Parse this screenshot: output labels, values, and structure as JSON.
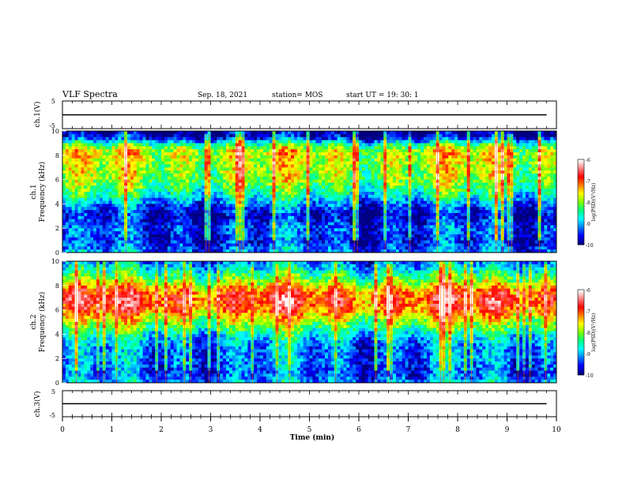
{
  "header": {
    "title": "VLF Spectra",
    "date": "Sep. 18, 2021",
    "station": "station= MOS",
    "start": "start  UT =   19: 30: 1"
  },
  "colors": {
    "colormap": [
      "#000080",
      "#0000ff",
      "#0080ff",
      "#00ffff",
      "#00ff80",
      "#80ff00",
      "#ffff00",
      "#ff8000",
      "#ff0000",
      "#ff8080",
      "#ffffff"
    ],
    "line": "#000000",
    "background": "#ffffff"
  },
  "chart_data": [
    {
      "id": "ch1v",
      "type": "line",
      "ylabel": "ch.1(V)",
      "ylim": [
        -5,
        5
      ],
      "ytick_labels": [
        "5",
        "-5"
      ],
      "series": [
        {
          "x": [
            0,
            9.8
          ],
          "values": [
            0,
            0
          ]
        }
      ]
    },
    {
      "id": "ch1spec",
      "type": "heatmap",
      "ylabel_lines": [
        "ch.1",
        "Frequency (kHz)"
      ],
      "ylim": [
        0,
        10
      ],
      "ytick_labels": [
        "0",
        "2",
        "4",
        "6",
        "8",
        "10"
      ],
      "colorbar": {
        "label": "log(PSD)(V²/Hz)",
        "tick_labels": [
          "-6",
          "-7",
          "-8",
          "-9",
          "-10"
        ],
        "range": [
          -10,
          -6
        ]
      },
      "intensity_profile": {
        "freq_khz": [
          0,
          0.5,
          1,
          1.5,
          2,
          2.5,
          3,
          3.5,
          4,
          4.5,
          5,
          5.5,
          6,
          6.5,
          7,
          7.5,
          8,
          8.5,
          9,
          9.5,
          10
        ],
        "log_psd": [
          -9.2,
          -9.4,
          -9.6,
          -9.5,
          -9.4,
          -9.6,
          -9.8,
          -9.6,
          -9.2,
          -8.8,
          -8.5,
          -8.2,
          -8.0,
          -7.9,
          -7.9,
          -7.8,
          -7.7,
          -7.8,
          -8.6,
          -9.8,
          -10
        ]
      }
    },
    {
      "id": "ch2spec",
      "type": "heatmap",
      "ylabel_lines": [
        "ch.2",
        "Frequency (kHz)"
      ],
      "ylim": [
        0,
        10
      ],
      "ytick_labels": [
        "0",
        "2",
        "4",
        "6",
        "8",
        "10"
      ],
      "colorbar": {
        "label": "log(PSD)(V²/Hz)",
        "tick_labels": [
          "-6",
          "-7",
          "-8",
          "-9",
          "-10"
        ],
        "range": [
          -10,
          -6
        ]
      },
      "intensity_profile": {
        "freq_khz": [
          0,
          0.5,
          1,
          1.5,
          2,
          2.5,
          3,
          3.5,
          4,
          4.5,
          5,
          5.5,
          6,
          6.5,
          7,
          7.5,
          8,
          8.5,
          9,
          9.5,
          10
        ],
        "log_psd": [
          -9.0,
          -9.3,
          -9.4,
          -9.3,
          -9.2,
          -9.3,
          -9.2,
          -9.0,
          -8.7,
          -8.3,
          -7.9,
          -7.5,
          -7.1,
          -6.9,
          -6.9,
          -7.1,
          -7.6,
          -8.1,
          -8.5,
          -8.9,
          -9.3
        ]
      }
    },
    {
      "id": "ch3v",
      "type": "line",
      "ylabel": "ch.3(V)",
      "ylim": [
        -5,
        5
      ],
      "ytick_labels": [
        "5",
        "-5"
      ],
      "xlabel": "Time  (min)",
      "xlim": [
        0,
        10
      ],
      "x_tick_labels": [
        "0",
        "1",
        "2",
        "3",
        "4",
        "5",
        "6",
        "7",
        "8",
        "9",
        "10"
      ],
      "series": [
        {
          "x": [
            0,
            9.8
          ],
          "values": [
            0,
            0
          ]
        }
      ]
    }
  ]
}
